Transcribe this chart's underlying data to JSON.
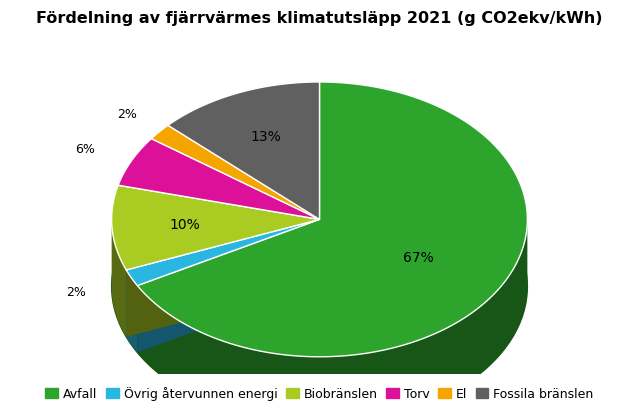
{
  "title": "Fördelning av fjärrvärmes klimatutsläpp 2021 (g CO2ekv/kWh)",
  "slices": [
    67,
    2,
    10,
    6,
    2,
    13
  ],
  "labels": [
    "Avfall",
    "Övrig återvunnen energi",
    "Biobränslen",
    "Torv",
    "El",
    "Fossila bränslen"
  ],
  "colors": [
    "#2da52d",
    "#29b6e0",
    "#aacc22",
    "#dd1199",
    "#f5a500",
    "#606060"
  ],
  "pct_labels": [
    "67%",
    "2%",
    "10%",
    "6%",
    "2%",
    "13%"
  ],
  "start_angle": 90,
  "background_color": "#ffffff",
  "title_fontsize": 11.5,
  "legend_fontsize": 9
}
